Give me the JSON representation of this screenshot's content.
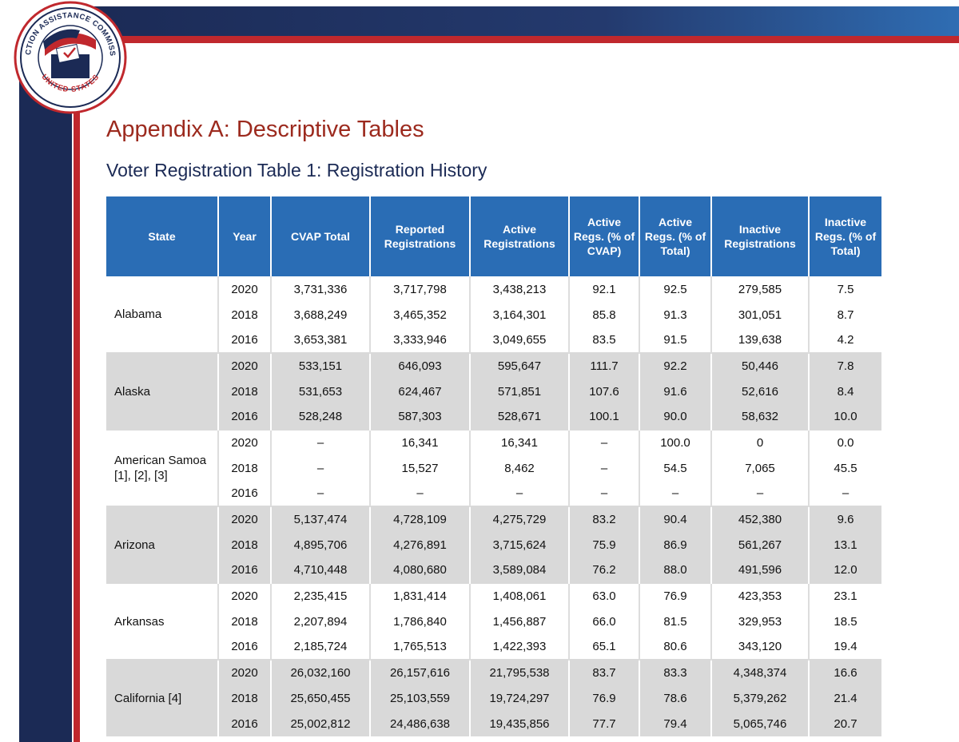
{
  "logo": {
    "top": "ELECTION ASSISTANCE COMMISSION",
    "bottom": "UNITED STATES"
  },
  "header": {
    "title": "Appendix A: Descriptive Tables",
    "subtitle": "Voter Registration Table 1: Registration History"
  },
  "table": {
    "columns": [
      "State",
      "Year",
      "CVAP Total",
      "Reported Registrations",
      "Active Registrations",
      "Active Regs. (% of CVAP)",
      "Active Regs. (% of Total)",
      "Inactive Registrations",
      "Inactive Regs. (% of Total)"
    ],
    "groups": [
      {
        "state": "Alabama",
        "rows": [
          [
            "2020",
            "3,731,336",
            "3,717,798",
            "3,438,213",
            "92.1",
            "92.5",
            "279,585",
            "7.5"
          ],
          [
            "2018",
            "3,688,249",
            "3,465,352",
            "3,164,301",
            "85.8",
            "91.3",
            "301,051",
            "8.7"
          ],
          [
            "2016",
            "3,653,381",
            "3,333,946",
            "3,049,655",
            "83.5",
            "91.5",
            "139,638",
            "4.2"
          ]
        ]
      },
      {
        "state": "Alaska",
        "rows": [
          [
            "2020",
            "533,151",
            "646,093",
            "595,647",
            "111.7",
            "92.2",
            "50,446",
            "7.8"
          ],
          [
            "2018",
            "531,653",
            "624,467",
            "571,851",
            "107.6",
            "91.6",
            "52,616",
            "8.4"
          ],
          [
            "2016",
            "528,248",
            "587,303",
            "528,671",
            "100.1",
            "90.0",
            "58,632",
            "10.0"
          ]
        ]
      },
      {
        "state": "American Samoa [1], [2], [3]",
        "rows": [
          [
            "2020",
            "–",
            "16,341",
            "16,341",
            "–",
            "100.0",
            "0",
            "0.0"
          ],
          [
            "2018",
            "–",
            "15,527",
            "8,462",
            "–",
            "54.5",
            "7,065",
            "45.5"
          ],
          [
            "2016",
            "–",
            "–",
            "–",
            "–",
            "–",
            "–",
            "–"
          ]
        ]
      },
      {
        "state": "Arizona",
        "rows": [
          [
            "2020",
            "5,137,474",
            "4,728,109",
            "4,275,729",
            "83.2",
            "90.4",
            "452,380",
            "9.6"
          ],
          [
            "2018",
            "4,895,706",
            "4,276,891",
            "3,715,624",
            "75.9",
            "86.9",
            "561,267",
            "13.1"
          ],
          [
            "2016",
            "4,710,448",
            "4,080,680",
            "3,589,084",
            "76.2",
            "88.0",
            "491,596",
            "12.0"
          ]
        ]
      },
      {
        "state": "Arkansas",
        "rows": [
          [
            "2020",
            "2,235,415",
            "1,831,414",
            "1,408,061",
            "63.0",
            "76.9",
            "423,353",
            "23.1"
          ],
          [
            "2018",
            "2,207,894",
            "1,786,840",
            "1,456,887",
            "66.0",
            "81.5",
            "329,953",
            "18.5"
          ],
          [
            "2016",
            "2,185,724",
            "1,765,513",
            "1,422,393",
            "65.1",
            "80.6",
            "343,120",
            "19.4"
          ]
        ]
      },
      {
        "state": "California [4]",
        "rows": [
          [
            "2020",
            "26,032,160",
            "26,157,616",
            "21,795,538",
            "83.7",
            "83.3",
            "4,348,374",
            "16.6"
          ],
          [
            "2018",
            "25,650,455",
            "25,103,559",
            "19,724,297",
            "76.9",
            "78.6",
            "5,379,262",
            "21.4"
          ],
          [
            "2016",
            "25,002,812",
            "24,486,638",
            "19,435,856",
            "77.7",
            "79.4",
            "5,065,746",
            "20.7"
          ]
        ]
      }
    ]
  }
}
